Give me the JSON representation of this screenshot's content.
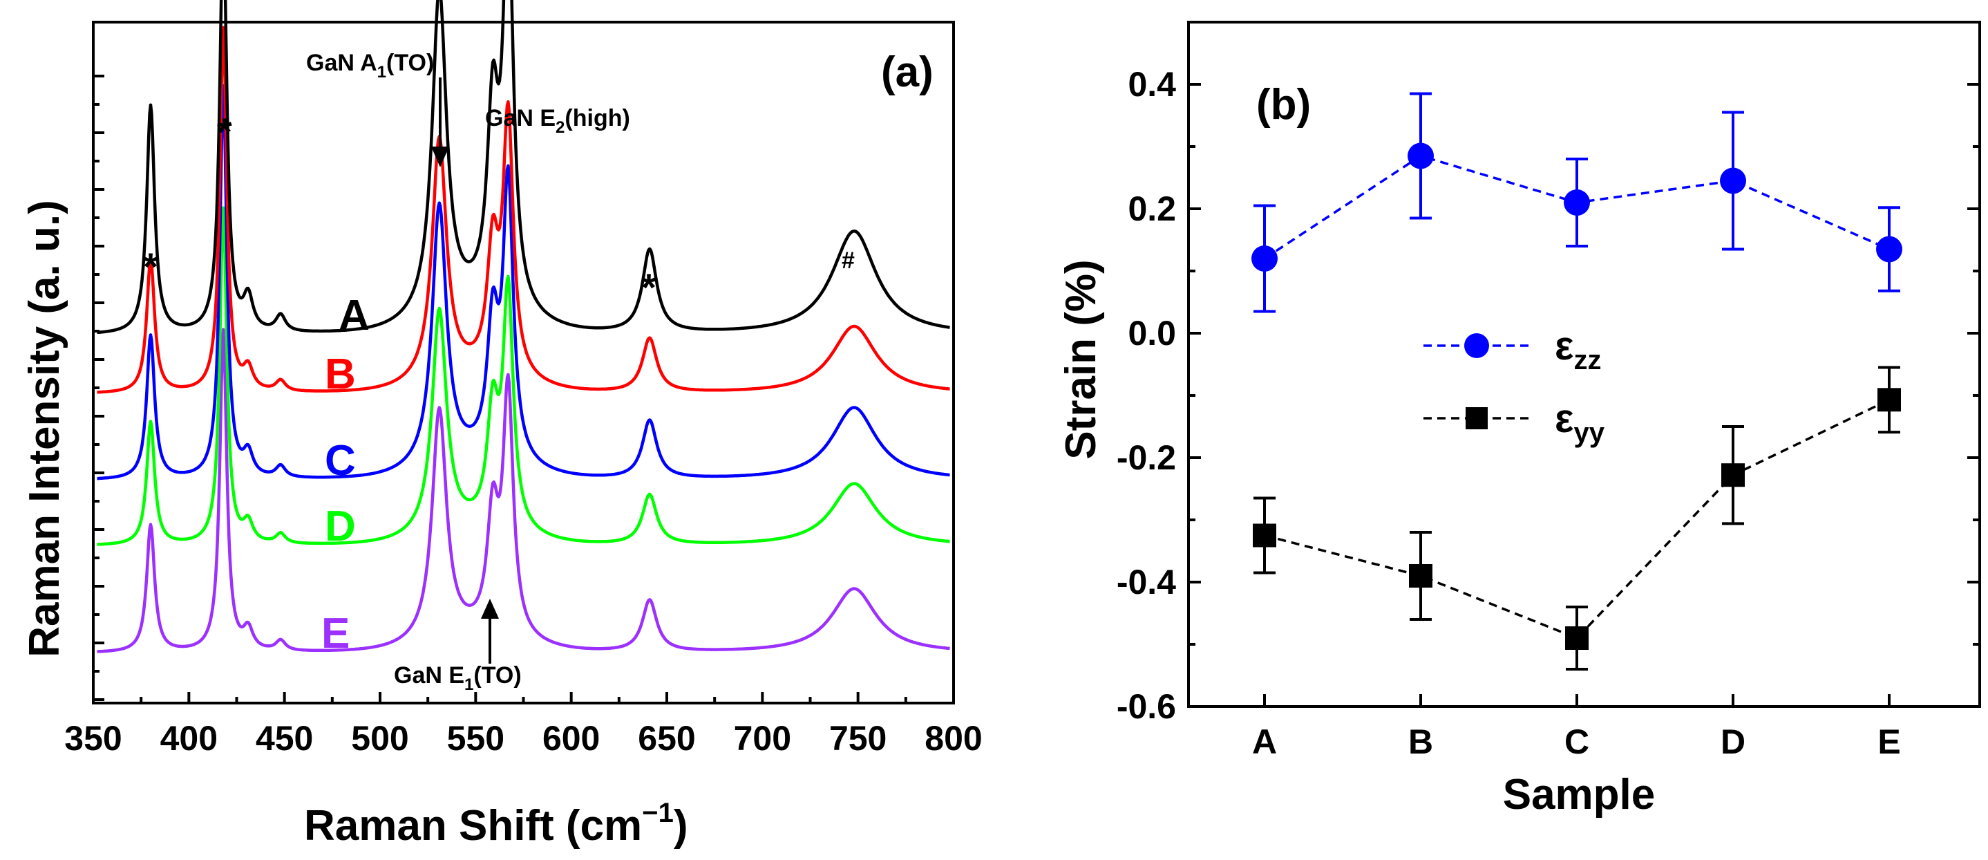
{
  "chart_data": [
    {
      "type": "line",
      "panel_label": "(a)",
      "xlabel": "Raman Shift (cm",
      "xlabel_sup": "−1",
      "xlabel_close": ")",
      "ylabel": "Raman Intensity (a. u.)",
      "xlim": [
        350,
        800
      ],
      "x_ticks": [
        "350",
        "400",
        "450",
        "500",
        "550",
        "600",
        "650",
        "700",
        "750",
        "800"
      ],
      "peaks": [
        {
          "center": 380,
          "width": 2.5,
          "rel": 0.55
        },
        {
          "center": 418,
          "width": 2.2,
          "rel": 1.0
        },
        {
          "center": 431,
          "width": 3,
          "rel": 0.08
        },
        {
          "center": 448,
          "width": 3,
          "rel": 0.04
        },
        {
          "center": 531,
          "width": 4.5,
          "rel": 0.78
        },
        {
          "center": 559,
          "width": 3.5,
          "rel": 0.45
        },
        {
          "center": 567,
          "width": 3.2,
          "rel": 0.95
        },
        {
          "center": 641,
          "width": 4.5,
          "rel": 0.2
        },
        {
          "center": 748,
          "width": 14,
          "rel": 0.25
        }
      ],
      "series": [
        {
          "name": "A",
          "color": "#000000",
          "scale": 1.0
        },
        {
          "name": "B",
          "color": "#ff0000",
          "scale": 0.65
        },
        {
          "name": "C",
          "color": "#0000ff",
          "scale": 0.7
        },
        {
          "name": "D",
          "color": "#00ff00",
          "scale": 0.6
        },
        {
          "name": "E",
          "color": "#9b30ff",
          "scale": 0.62
        }
      ],
      "annotations": {
        "a1_main": "GaN A",
        "a1_sub": "1",
        "a1_tail": "(TO)",
        "e2_main": "GaN E",
        "e2_sub": "2",
        "e2_tail": "(high)",
        "e1_main": "GaN E",
        "e1_sub": "1",
        "e1_tail": "(TO)",
        "star": "*",
        "hash": "#"
      }
    },
    {
      "type": "scatter",
      "panel_label": "(b)",
      "xlabel": "Sample",
      "ylabel": "Strain (%)",
      "categories": [
        "A",
        "B",
        "C",
        "D",
        "E"
      ],
      "ylim": [
        -0.6,
        0.5
      ],
      "y_ticks": [
        "0.4",
        "0.2",
        "0.0",
        "-0.2",
        "-0.4",
        "-0.6"
      ],
      "series": [
        {
          "name": "ε",
          "sub": "zz",
          "color": "#0000ff",
          "marker": "circle",
          "values": [
            0.12,
            0.285,
            0.21,
            0.245,
            0.135
          ],
          "errors": [
            0.085,
            0.1,
            0.07,
            0.11,
            0.067
          ]
        },
        {
          "name": "ε",
          "sub": "yy",
          "color": "#000000",
          "marker": "square",
          "values": [
            -0.325,
            -0.39,
            -0.49,
            -0.228,
            -0.107
          ],
          "errors": [
            0.06,
            0.07,
            0.05,
            0.078,
            0.052
          ]
        }
      ]
    }
  ]
}
